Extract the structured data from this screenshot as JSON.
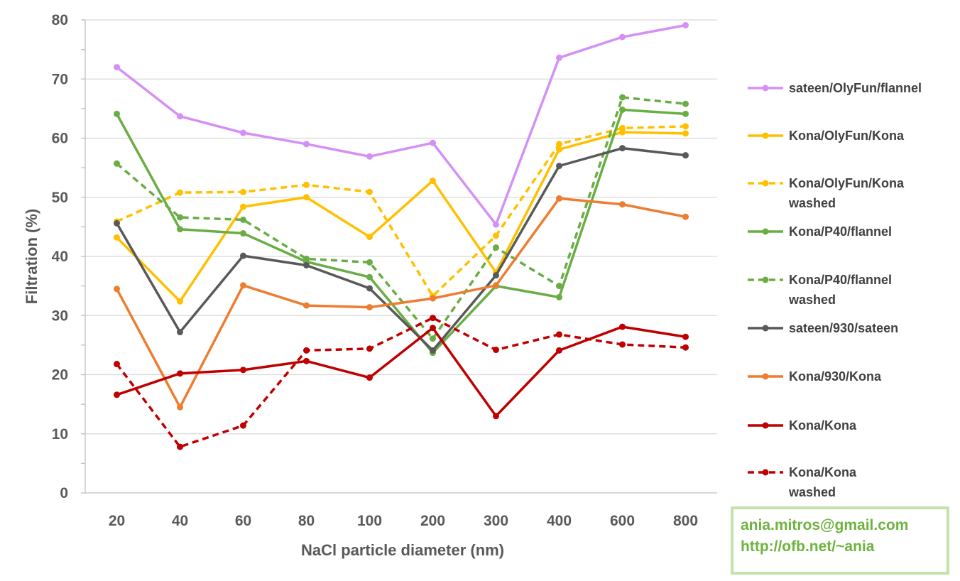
{
  "chart_data": {
    "type": "line",
    "title": "",
    "xlabel": "NaCl particle diameter (nm)",
    "ylabel": "Filtration (%)",
    "categories": [
      "20",
      "40",
      "60",
      "80",
      "100",
      "200",
      "300",
      "400",
      "600",
      "800"
    ],
    "ylim": [
      0,
      80
    ],
    "yticks": [
      "0",
      "10",
      "20",
      "30",
      "40",
      "50",
      "60",
      "70",
      "80"
    ],
    "grid": true,
    "legend_position": "right",
    "series": [
      {
        "name": "sateen/OlyFun/flannel",
        "color": "#d490f5",
        "dashed": false,
        "values": [
          72.0,
          63.7,
          60.9,
          59.0,
          56.9,
          59.2,
          45.4,
          73.6,
          77.1,
          79.1
        ]
      },
      {
        "name": "Kona/OlyFun/Kona",
        "color": "#ffc000",
        "dashed": false,
        "values": [
          43.2,
          32.4,
          48.4,
          50.0,
          43.3,
          52.8,
          37.3,
          58.1,
          61.0,
          60.8
        ]
      },
      {
        "name": "Kona/OlyFun/Kona washed",
        "color": "#ffc000",
        "dashed": true,
        "values": [
          45.9,
          50.8,
          50.9,
          52.1,
          50.9,
          33.3,
          43.5,
          59.0,
          61.7,
          62.0
        ]
      },
      {
        "name": "Kona/P40/flannel",
        "color": "#6aad45",
        "dashed": false,
        "values": [
          64.1,
          44.6,
          43.9,
          39.1,
          36.5,
          23.7,
          35.0,
          33.1,
          64.8,
          64.1
        ]
      },
      {
        "name": "Kona/P40/flannel washed",
        "color": "#6aad45",
        "dashed": true,
        "values": [
          55.7,
          46.6,
          46.2,
          39.6,
          39.0,
          26.1,
          41.5,
          35.0,
          66.9,
          65.8
        ]
      },
      {
        "name": "sateen/930/sateen",
        "color": "#595959",
        "dashed": false,
        "values": [
          45.6,
          27.2,
          40.1,
          38.5,
          34.6,
          24.1,
          36.8,
          55.3,
          58.3,
          57.1
        ]
      },
      {
        "name": "Kona/930/Kona",
        "color": "#ed7d31",
        "dashed": false,
        "values": [
          34.5,
          14.5,
          35.1,
          31.7,
          31.4,
          32.9,
          35.1,
          49.8,
          48.8,
          46.7
        ]
      },
      {
        "name": "Kona/Kona",
        "color": "#c00000",
        "dashed": false,
        "values": [
          16.6,
          20.2,
          20.8,
          22.3,
          19.5,
          27.9,
          13.0,
          24.1,
          28.1,
          26.4
        ]
      },
      {
        "name": "Kona/Kona washed",
        "color": "#c00000",
        "dashed": true,
        "values": [
          21.8,
          7.8,
          11.4,
          24.1,
          24.4,
          29.6,
          24.2,
          26.8,
          25.1,
          24.6
        ]
      }
    ]
  },
  "contact": {
    "email": "ania.mitros@gmail.com",
    "url": "http://ofb.net/~ania"
  }
}
